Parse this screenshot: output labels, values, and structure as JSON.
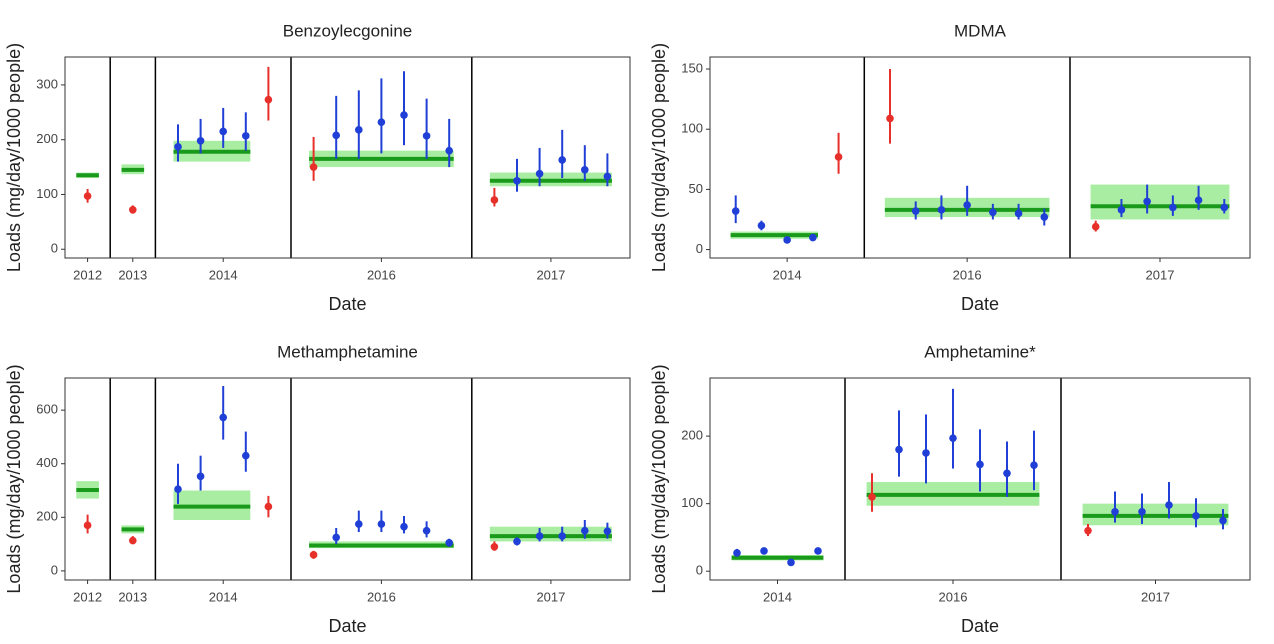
{
  "chart_data": [
    {
      "type": "errorbar",
      "title": "Benzoylecgonine",
      "x_label": "Date",
      "y_label": "Loads (mg/day/1000 people)",
      "ylim": [
        -16,
        351
      ],
      "yticks": [
        0,
        100,
        200,
        300
      ],
      "line_color": "#1a9a1a",
      "band_color": "#a8eda2",
      "facets": [
        {
          "label": "2012",
          "values": [
            97
          ],
          "lower": [
            85
          ],
          "upper": [
            110
          ],
          "colors": [
            "#e8302a"
          ],
          "band": {
            "value": 135,
            "lower": 130,
            "upper": 140
          }
        },
        {
          "label": "2013",
          "values": [
            72
          ],
          "lower": [
            65
          ],
          "upper": [
            80
          ],
          "colors": [
            "#e8302a"
          ],
          "band": {
            "value": 145,
            "lower": 137,
            "upper": 155
          }
        },
        {
          "label": "2014",
          "values": [
            187,
            198,
            215,
            207,
            273
          ],
          "lower": [
            160,
            175,
            185,
            180,
            235
          ],
          "upper": [
            228,
            238,
            258,
            250,
            333
          ],
          "colors": [
            "#1f3fd6",
            "#1f3fd6",
            "#1f3fd6",
            "#1f3fd6",
            "#e8302a"
          ],
          "band": {
            "value": 178,
            "lower": 160,
            "upper": 198
          }
        },
        {
          "label": "2016",
          "values": [
            150,
            208,
            218,
            232,
            245,
            207,
            180
          ],
          "lower": [
            125,
            165,
            165,
            175,
            190,
            165,
            150
          ],
          "upper": [
            205,
            280,
            290,
            312,
            325,
            275,
            238
          ],
          "colors": [
            "#e8302a",
            "#1f3fd6",
            "#1f3fd6",
            "#1f3fd6",
            "#1f3fd6",
            "#1f3fd6",
            "#1f3fd6"
          ],
          "band": {
            "value": 165,
            "lower": 150,
            "upper": 180
          }
        },
        {
          "label": "2017",
          "values": [
            90,
            125,
            138,
            163,
            145,
            133
          ],
          "lower": [
            78,
            105,
            115,
            130,
            125,
            115
          ],
          "upper": [
            112,
            165,
            185,
            218,
            190,
            175
          ],
          "colors": [
            "#e8302a",
            "#1f3fd6",
            "#1f3fd6",
            "#1f3fd6",
            "#1f3fd6",
            "#1f3fd6"
          ],
          "band": {
            "value": 125,
            "lower": 115,
            "upper": 140
          }
        }
      ]
    },
    {
      "type": "errorbar",
      "title": "MDMA",
      "x_label": "Date",
      "y_label": "Loads (mg/day/1000 people)",
      "ylim": [
        -7,
        160
      ],
      "yticks": [
        0,
        50,
        100,
        150
      ],
      "line_color": "#1a9a1a",
      "band_color": "#a8eda2",
      "facets": [
        {
          "label": "2014",
          "values": [
            32,
            20,
            8,
            10,
            77
          ],
          "lower": [
            22,
            16,
            6,
            8,
            63
          ],
          "upper": [
            45,
            24,
            10,
            12,
            97
          ],
          "colors": [
            "#1f3fd6",
            "#1f3fd6",
            "#1f3fd6",
            "#1f3fd6",
            "#e8302a"
          ],
          "band": {
            "value": 12,
            "lower": 9,
            "upper": 15
          }
        },
        {
          "label": "2016",
          "values": [
            109,
            32,
            33,
            37,
            31,
            30,
            27
          ],
          "lower": [
            88,
            25,
            25,
            28,
            25,
            25,
            20
          ],
          "upper": [
            150,
            40,
            45,
            53,
            38,
            38,
            34
          ],
          "colors": [
            "#e8302a",
            "#1f3fd6",
            "#1f3fd6",
            "#1f3fd6",
            "#1f3fd6",
            "#1f3fd6",
            "#1f3fd6"
          ],
          "band": {
            "value": 33,
            "lower": 27,
            "upper": 43
          }
        },
        {
          "label": "2017",
          "values": [
            19,
            33,
            40,
            35,
            41,
            35
          ],
          "lower": [
            15,
            27,
            30,
            28,
            33,
            30
          ],
          "upper": [
            24,
            42,
            54,
            45,
            53,
            42
          ],
          "colors": [
            "#e8302a",
            "#1f3fd6",
            "#1f3fd6",
            "#1f3fd6",
            "#1f3fd6",
            "#1f3fd6"
          ],
          "band": {
            "value": 36,
            "lower": 25,
            "upper": 54
          }
        }
      ]
    },
    {
      "type": "errorbar",
      "title": "Methamphetamine",
      "x_label": "Date",
      "y_label": "Loads (mg/day/1000 people)",
      "ylim": [
        -34,
        720
      ],
      "yticks": [
        0,
        200,
        400,
        600
      ],
      "line_color": "#1a9a1a",
      "band_color": "#a8eda2",
      "facets": [
        {
          "label": "2012",
          "values": [
            170
          ],
          "lower": [
            140
          ],
          "upper": [
            210
          ],
          "colors": [
            "#e8302a"
          ],
          "band": {
            "value": 302,
            "lower": 270,
            "upper": 335
          }
        },
        {
          "label": "2013",
          "values": [
            113
          ],
          "lower": [
            100
          ],
          "upper": [
            130
          ],
          "colors": [
            "#e8302a"
          ],
          "band": {
            "value": 155,
            "lower": 140,
            "upper": 170
          }
        },
        {
          "label": "2014",
          "values": [
            305,
            353,
            573,
            430,
            240
          ],
          "lower": [
            250,
            300,
            490,
            370,
            200
          ],
          "upper": [
            400,
            430,
            690,
            520,
            280
          ],
          "colors": [
            "#1f3fd6",
            "#1f3fd6",
            "#1f3fd6",
            "#1f3fd6",
            "#e8302a"
          ],
          "band": {
            "value": 240,
            "lower": 190,
            "upper": 300
          }
        },
        {
          "label": "2016",
          "values": [
            60,
            125,
            175,
            175,
            165,
            150,
            105
          ],
          "lower": [
            45,
            100,
            145,
            145,
            140,
            125,
            90
          ],
          "upper": [
            75,
            160,
            225,
            225,
            205,
            185,
            120
          ],
          "colors": [
            "#e8302a",
            "#1f3fd6",
            "#1f3fd6",
            "#1f3fd6",
            "#1f3fd6",
            "#1f3fd6",
            "#1f3fd6"
          ],
          "band": {
            "value": 95,
            "lower": 85,
            "upper": 110
          }
        },
        {
          "label": "2017",
          "values": [
            90,
            110,
            130,
            130,
            150,
            148
          ],
          "lower": [
            75,
            95,
            110,
            110,
            120,
            120
          ],
          "upper": [
            110,
            125,
            160,
            165,
            190,
            180
          ],
          "colors": [
            "#e8302a",
            "#1f3fd6",
            "#1f3fd6",
            "#1f3fd6",
            "#1f3fd6",
            "#1f3fd6"
          ],
          "band": {
            "value": 130,
            "lower": 110,
            "upper": 165
          }
        }
      ]
    },
    {
      "type": "errorbar",
      "title": "Amphetamine*",
      "x_label": "Date",
      "y_label": "Loads (mg/day/1000 people)",
      "ylim": [
        -13,
        286
      ],
      "yticks": [
        0,
        100,
        200
      ],
      "line_color": "#1a9a1a",
      "band_color": "#a8eda2",
      "facets": [
        {
          "label": "2014",
          "values": [
            27,
            30,
            13,
            30
          ],
          "lower": [
            22,
            26,
            10,
            25
          ],
          "upper": [
            33,
            35,
            17,
            35
          ],
          "colors": [
            "#1f3fd6",
            "#1f3fd6",
            "#1f3fd6",
            "#1f3fd6"
          ],
          "band": {
            "value": 20,
            "lower": 16,
            "upper": 24
          }
        },
        {
          "label": "2016",
          "values": [
            110,
            180,
            175,
            197,
            158,
            145,
            157
          ],
          "lower": [
            88,
            140,
            130,
            152,
            118,
            110,
            120
          ],
          "upper": [
            145,
            238,
            232,
            270,
            210,
            192,
            208
          ],
          "colors": [
            "#e8302a",
            "#1f3fd6",
            "#1f3fd6",
            "#1f3fd6",
            "#1f3fd6",
            "#1f3fd6",
            "#1f3fd6"
          ],
          "band": {
            "value": 113,
            "lower": 97,
            "upper": 132
          }
        },
        {
          "label": "2017",
          "values": [
            60,
            88,
            88,
            98,
            82,
            75
          ],
          "lower": [
            52,
            72,
            70,
            78,
            65,
            62
          ],
          "upper": [
            70,
            118,
            115,
            132,
            108,
            92
          ],
          "colors": [
            "#e8302a",
            "#1f3fd6",
            "#1f3fd6",
            "#1f3fd6",
            "#1f3fd6",
            "#1f3fd6"
          ],
          "band": {
            "value": 82,
            "lower": 68,
            "upper": 100
          }
        }
      ]
    }
  ]
}
